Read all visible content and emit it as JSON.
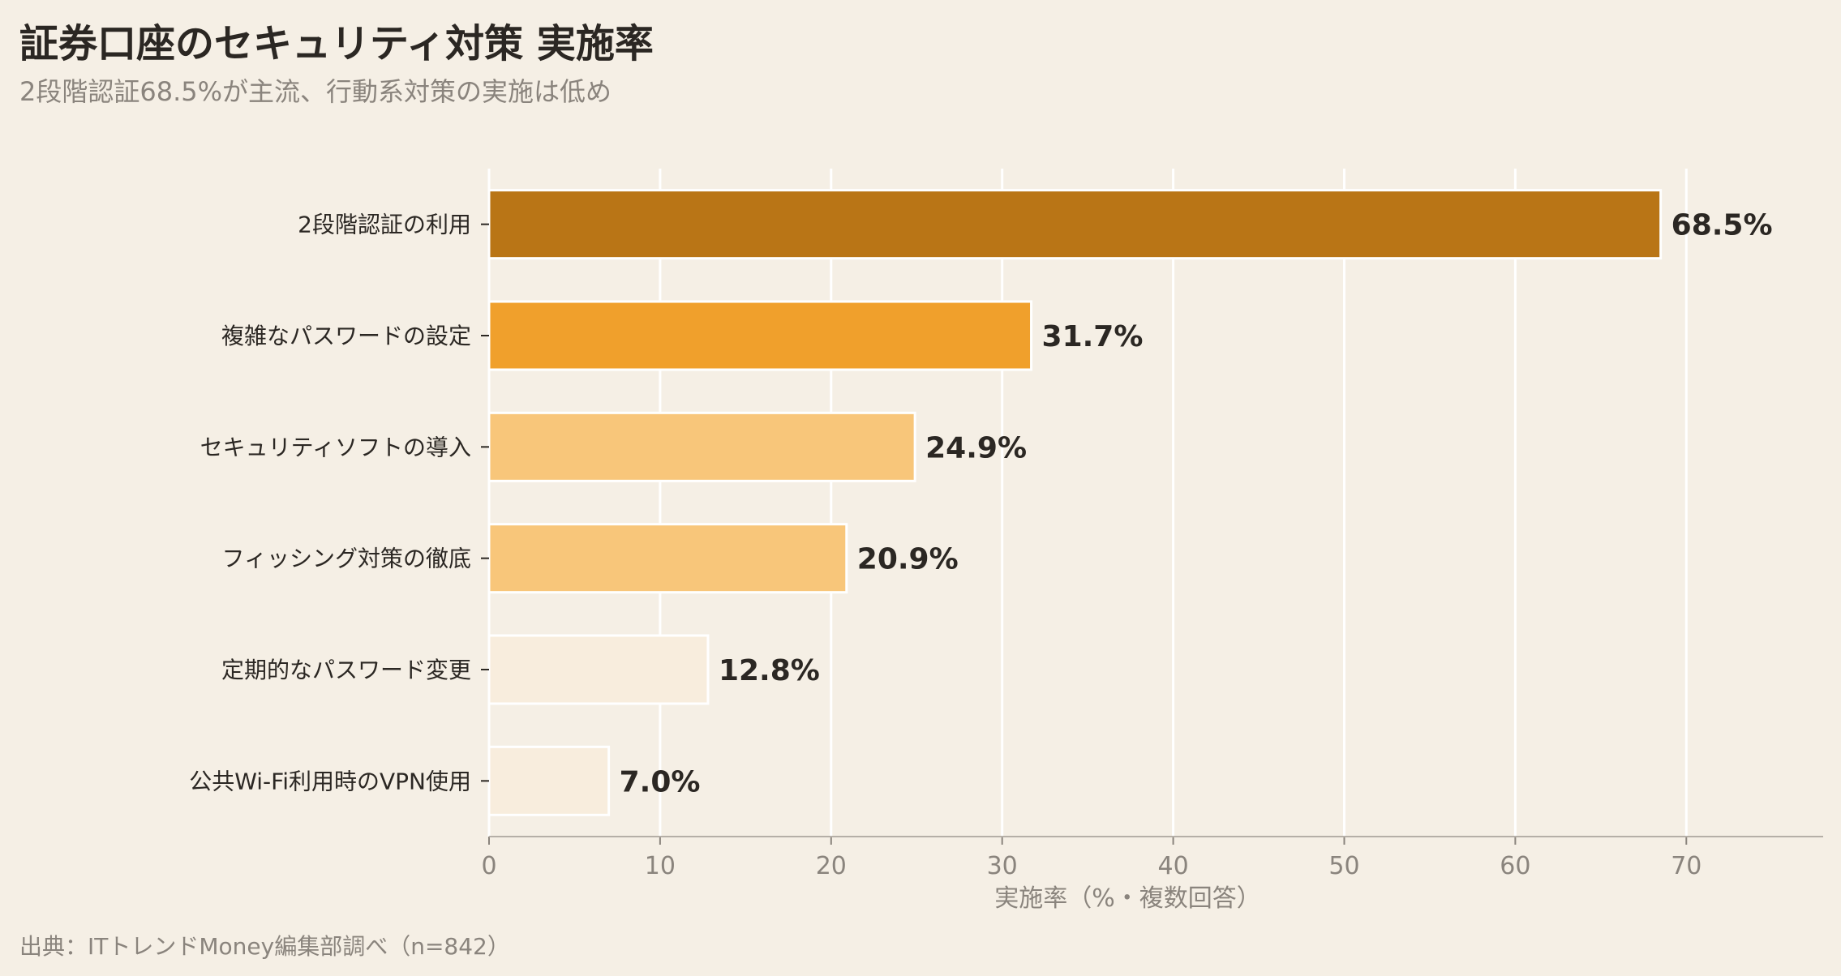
{
  "title": "証券口座のセキュリティ対策 実施率",
  "subtitle": "2段階認証68.5%が主流、行動系対策の実施は低め",
  "source": "出典：ITトレンドMoney編集部調べ（n=842）",
  "chart_data": {
    "type": "bar",
    "orientation": "horizontal",
    "categories": [
      "2段階認証の利用",
      "複雑なパスワードの設定",
      "セキュリティソフトの導入",
      "フィッシング対策の徹底",
      "定期的なパスワード変更",
      "公共Wi-Fi利用時のVPN使用"
    ],
    "values": [
      68.5,
      31.7,
      24.9,
      20.9,
      12.8,
      7.0
    ],
    "value_labels": [
      "68.5%",
      "31.7%",
      "24.9%",
      "20.9%",
      "12.8%",
      "7.0%"
    ],
    "bar_colors": [
      "#b97516",
      "#f0a02c",
      "#f8c67a",
      "#f8c67a",
      "#f8eddd",
      "#f8eddd"
    ],
    "xlabel": "実施率（%・複数回答）",
    "xlim": [
      0,
      78
    ],
    "xticks": [
      0,
      10,
      20,
      30,
      40,
      50,
      60,
      70
    ],
    "grid": true,
    "legend": "none"
  }
}
